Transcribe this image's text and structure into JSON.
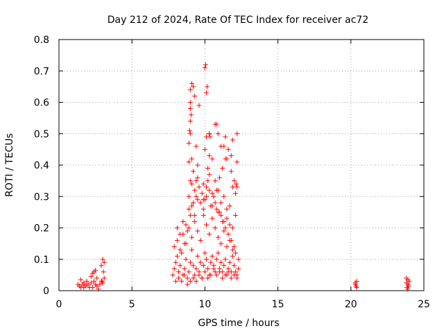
{
  "chart_data": {
    "type": "scatter",
    "title": "Day 212 of 2024, Rate Of TEC Index for receiver ac72",
    "xlabel": "GPS time / hours",
    "ylabel": "ROTI / TECUs",
    "xlim": [
      0,
      25
    ],
    "ylim": [
      0,
      0.8
    ],
    "xticks": [
      0,
      5,
      10,
      15,
      20,
      25
    ],
    "yticks": [
      0,
      0.1,
      0.2,
      0.3,
      0.4,
      0.5,
      0.6,
      0.7,
      0.8
    ],
    "xtick_labels": [
      "0",
      "5",
      "10",
      "15",
      "20",
      "25"
    ],
    "ytick_labels": [
      "0",
      "0.1",
      "0.2",
      "0.3",
      "0.4",
      "0.5",
      "0.6",
      "0.7",
      "0.8"
    ],
    "grid": true,
    "marker": "plus",
    "color": "#ff0000",
    "series": [
      {
        "name": "ROTI",
        "x": [
          1.3,
          1.4,
          1.5,
          1.6,
          1.7,
          1.8,
          1.9,
          2.0,
          2.1,
          1.5,
          1.7,
          1.9,
          2.2,
          2.3,
          2.4,
          2.5,
          2.6,
          2.7,
          2.2,
          2.4,
          2.6,
          2.3,
          2.5,
          2.8,
          2.9,
          3.0,
          3.1,
          2.9,
          3.0,
          3.1,
          3.05,
          2.95,
          7.8,
          7.9,
          8.0,
          8.1,
          8.2,
          8.3,
          8.4,
          8.5,
          8.6,
          8.7,
          8.8,
          8.9,
          9.0,
          9.1,
          9.2,
          9.3,
          9.4,
          9.5,
          9.6,
          9.7,
          9.8,
          9.9,
          10.0,
          10.1,
          10.2,
          10.3,
          10.4,
          10.5,
          10.6,
          10.7,
          10.8,
          10.9,
          11.0,
          11.1,
          11.2,
          11.3,
          11.4,
          11.5,
          11.6,
          11.7,
          11.8,
          11.9,
          12.0,
          12.1,
          12.2,
          12.3,
          7.9,
          8.1,
          8.3,
          8.5,
          8.7,
          8.9,
          9.1,
          9.3,
          9.5,
          9.7,
          9.9,
          10.1,
          10.3,
          10.5,
          10.7,
          10.9,
          11.1,
          11.3,
          11.5,
          11.7,
          11.9,
          12.1,
          12.3,
          8.0,
          8.2,
          8.4,
          8.6,
          8.8,
          9.0,
          9.2,
          9.4,
          9.6,
          9.8,
          10.0,
          10.2,
          10.4,
          10.6,
          10.8,
          11.0,
          11.2,
          11.4,
          11.6,
          11.8,
          12.0,
          12.2,
          8.1,
          8.5,
          8.9,
          9.3,
          9.7,
          10.1,
          10.5,
          10.9,
          11.3,
          11.7,
          12.1,
          8.3,
          8.7,
          9.1,
          9.5,
          9.9,
          10.3,
          10.7,
          11.1,
          11.5,
          11.9,
          8.6,
          8.8,
          9.0,
          9.2,
          9.4,
          9.6,
          9.8,
          10.0,
          10.2,
          10.4,
          10.6,
          10.8,
          11.0,
          11.2,
          11.4,
          11.6,
          11.8,
          12.0,
          8.9,
          9.1,
          9.3,
          9.5,
          9.9,
          10.1,
          10.3,
          10.5,
          10.7,
          10.9,
          11.1,
          11.3,
          11.5,
          11.7,
          11.9,
          12.1,
          8.9,
          9.0,
          9.1,
          9.2,
          9.4,
          9.5,
          9.9,
          10.0,
          10.2,
          10.3,
          10.5,
          10.8,
          11.0,
          11.2,
          11.4,
          11.8,
          12.0,
          12.2,
          8.9,
          9.0,
          9.4,
          10.1,
          10.3,
          10.7,
          11.1,
          11.4,
          11.9,
          12.2,
          8.95,
          9.0,
          9.05,
          9.0,
          9.0,
          9.1,
          9.2,
          9.0,
          9.3,
          9.6,
          10.0,
          10.05,
          10.1,
          10.15,
          10.3,
          10.35,
          10.8,
          10.9,
          11.3,
          11.5,
          11.6,
          11.8,
          12.15,
          12.2,
          20.3,
          20.4,
          20.35,
          20.4,
          20.3,
          23.8,
          23.9,
          24.0,
          23.85,
          23.95,
          23.9,
          23.8,
          23.9
        ],
        "y": [
          0.02,
          0.015,
          0.01,
          0.02,
          0.025,
          0.015,
          0.03,
          0.02,
          0.01,
          0.035,
          0.01,
          0.02,
          0.025,
          0.01,
          0.03,
          0.02,
          0.015,
          0.005,
          0.045,
          0.06,
          0.04,
          0.055,
          0.065,
          0.02,
          0.03,
          0.025,
          0.04,
          0.08,
          0.1,
          0.09,
          0.06,
          0.03,
          0.05,
          0.07,
          0.09,
          0.11,
          0.06,
          0.08,
          0.12,
          0.05,
          0.07,
          0.1,
          0.04,
          0.06,
          0.09,
          0.13,
          0.08,
          0.05,
          0.07,
          0.11,
          0.06,
          0.09,
          0.04,
          0.08,
          0.12,
          0.1,
          0.07,
          0.05,
          0.09,
          0.11,
          0.08,
          0.06,
          0.1,
          0.12,
          0.07,
          0.09,
          0.06,
          0.08,
          0.1,
          0.05,
          0.07,
          0.09,
          0.06,
          0.11,
          0.08,
          0.06,
          0.05,
          0.07,
          0.14,
          0.16,
          0.13,
          0.18,
          0.15,
          0.2,
          0.17,
          0.22,
          0.19,
          0.16,
          0.24,
          0.21,
          0.18,
          0.23,
          0.2,
          0.17,
          0.15,
          0.19,
          0.14,
          0.16,
          0.13,
          0.12,
          0.1,
          0.03,
          0.04,
          0.03,
          0.05,
          0.02,
          0.03,
          0.04,
          0.03,
          0.05,
          0.04,
          0.06,
          0.04,
          0.05,
          0.07,
          0.05,
          0.06,
          0.04,
          0.05,
          0.06,
          0.04,
          0.05,
          0.04,
          0.2,
          0.22,
          0.26,
          0.24,
          0.28,
          0.3,
          0.27,
          0.25,
          0.22,
          0.21,
          0.24,
          0.18,
          0.21,
          0.27,
          0.29,
          0.26,
          0.32,
          0.28,
          0.24,
          0.23,
          0.2,
          0.15,
          0.19,
          0.24,
          0.28,
          0.3,
          0.33,
          0.31,
          0.29,
          0.35,
          0.27,
          0.3,
          0.26,
          0.25,
          0.22,
          0.2,
          0.18,
          0.16,
          0.14,
          0.3,
          0.34,
          0.32,
          0.36,
          0.34,
          0.33,
          0.37,
          0.31,
          0.35,
          0.32,
          0.28,
          0.3,
          0.26,
          0.27,
          0.33,
          0.31,
          0.41,
          0.35,
          0.42,
          0.38,
          0.35,
          0.4,
          0.29,
          0.45,
          0.39,
          0.43,
          0.42,
          0.32,
          0.36,
          0.39,
          0.42,
          0.43,
          0.35,
          0.41,
          0.47,
          0.5,
          0.46,
          0.49,
          0.5,
          0.53,
          0.46,
          0.49,
          0.48,
          0.5,
          0.51,
          0.54,
          0.56,
          0.6,
          0.64,
          0.66,
          0.65,
          0.58,
          0.62,
          0.59,
          0.71,
          0.72,
          0.63,
          0.65,
          0.5,
          0.49,
          0.53,
          0.5,
          0.46,
          0.42,
          0.45,
          0.38,
          0.34,
          0.33,
          0.02,
          0.03,
          0.015,
          0.01,
          0.025,
          0.04,
          0.02,
          0.03,
          0.01,
          0.015,
          0.035,
          0.025,
          0.005
        ]
      }
    ]
  }
}
